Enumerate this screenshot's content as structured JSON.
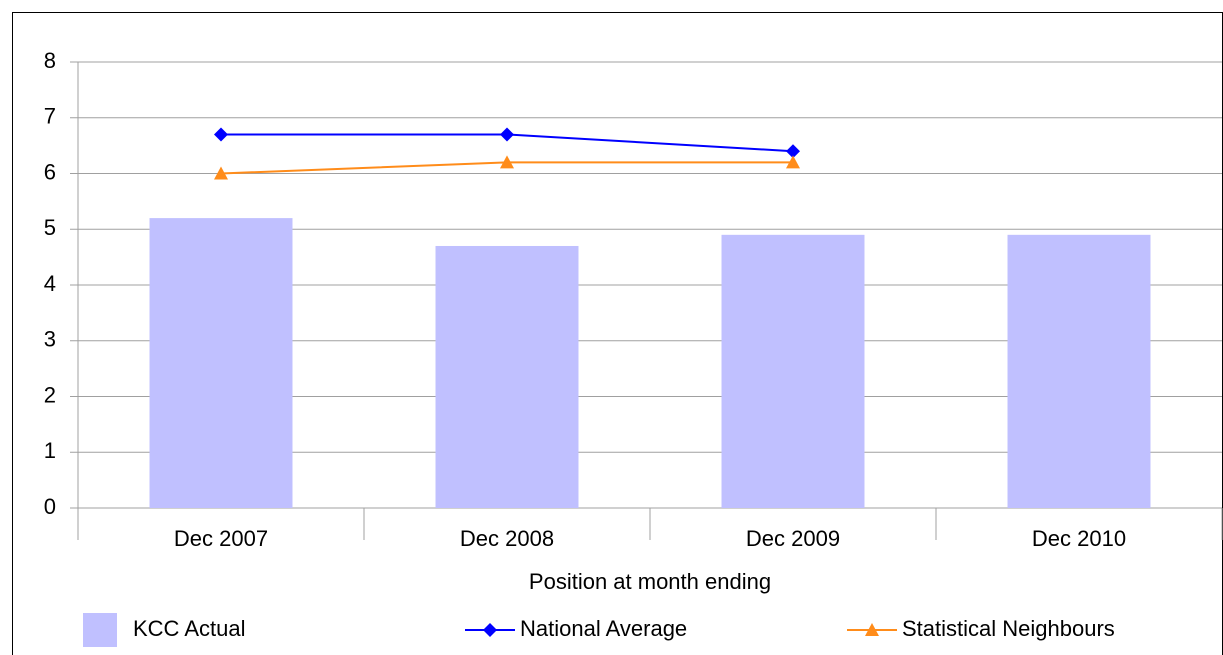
{
  "chart_data": {
    "type": "bar",
    "x_label": "Position at month ending",
    "categories": [
      "Dec 2007",
      "Dec 2008",
      "Dec 2009",
      "Dec 2010"
    ],
    "series": [
      {
        "name": "KCC Actual",
        "type": "bar",
        "color": "#c0c0ff",
        "values": [
          5.2,
          4.7,
          4.9,
          4.9
        ]
      },
      {
        "name": "National Average",
        "type": "line",
        "marker": "diamond",
        "color": "#0000ff",
        "values": [
          6.7,
          6.7,
          6.4,
          null
        ]
      },
      {
        "name": "Statistical Neighbours",
        "type": "line",
        "marker": "triangle",
        "color": "#ff8c1a",
        "values": [
          6.0,
          6.2,
          6.2,
          null
        ]
      }
    ],
    "ylim": [
      0,
      8
    ],
    "yticks": [
      0,
      1,
      2,
      3,
      4,
      5,
      6,
      7,
      8
    ],
    "grid": true,
    "legend": "bottom"
  }
}
